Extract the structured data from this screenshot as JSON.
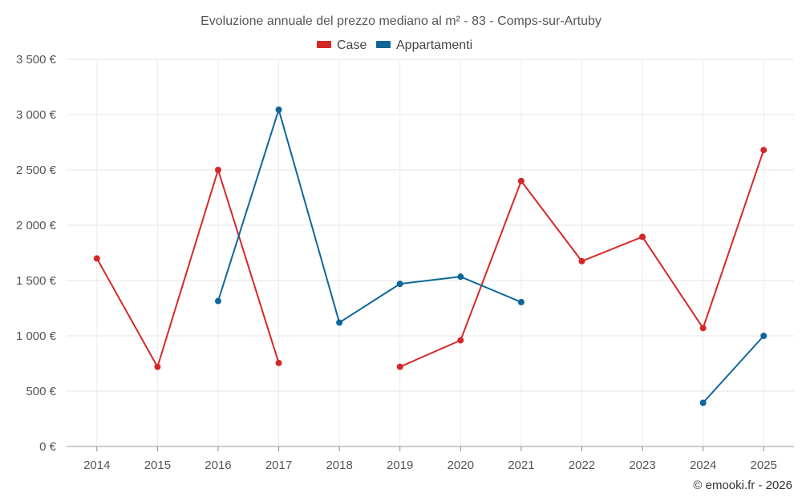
{
  "chart_data": {
    "type": "line",
    "title": "Evoluzione annuale del prezzo mediano al m² - 83 - Comps-sur-Artuby",
    "xlabel": "",
    "ylabel": "",
    "ylim": [
      0,
      3500
    ],
    "yticks": [
      0,
      500,
      1000,
      1500,
      2000,
      2500,
      3000,
      3500
    ],
    "ytick_labels": [
      "0 €",
      "500 €",
      "1 000 €",
      "1 500 €",
      "2 000 €",
      "2 500 €",
      "3 000 €",
      "3 500 €"
    ],
    "categories": [
      "2014",
      "2015",
      "2016",
      "2017",
      "2018",
      "2019",
      "2020",
      "2021",
      "2022",
      "2023",
      "2024",
      "2025"
    ],
    "grid": true,
    "legend_position": "top-center",
    "series": [
      {
        "name": "Case",
        "color": "#d62728",
        "values": [
          1700,
          720,
          2500,
          755,
          null,
          720,
          960,
          2400,
          1675,
          1895,
          1070,
          2680
        ]
      },
      {
        "name": "Appartamenti",
        "color": "#0f6699",
        "values": [
          null,
          null,
          1315,
          3045,
          1120,
          1470,
          1535,
          1305,
          null,
          null,
          395,
          1000
        ]
      }
    ],
    "credit": "© emooki.fr - 2026"
  }
}
